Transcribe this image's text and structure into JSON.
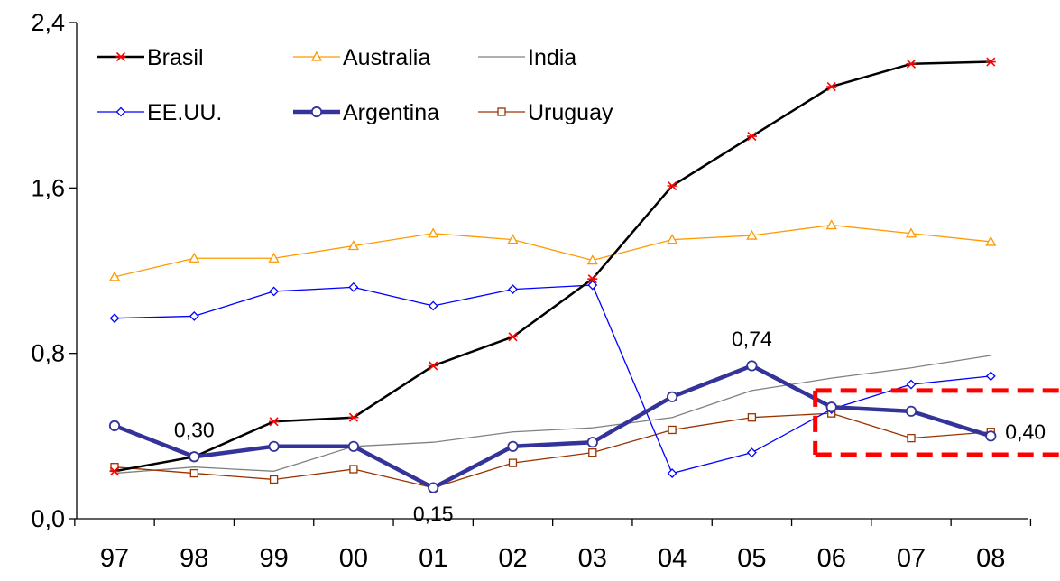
{
  "chart_data": {
    "type": "line",
    "title": "",
    "xlabel": "",
    "ylabel": "",
    "categories": [
      "97",
      "98",
      "99",
      "00",
      "01",
      "02",
      "03",
      "04",
      "05",
      "06",
      "07",
      "08"
    ],
    "ylim": [
      0,
      2.4
    ],
    "yticks": [
      0,
      0.8,
      1.6,
      2.4
    ],
    "ytick_labels": [
      "0,0",
      "0,8",
      "1,6",
      "2,4"
    ],
    "grid": false,
    "legend_position": "top-left",
    "series": [
      {
        "name": "Brasil",
        "color": "#000000",
        "marker": "asterisk",
        "marker_color": "#ff0000",
        "width": 2.5,
        "values": [
          0.23,
          0.3,
          0.47,
          0.49,
          0.74,
          0.88,
          1.16,
          1.61,
          1.85,
          2.09,
          2.2,
          2.21
        ]
      },
      {
        "name": "Australia",
        "color": "#ff9900",
        "marker": "triangle",
        "width": 1.3,
        "values": [
          1.17,
          1.26,
          1.26,
          1.32,
          1.38,
          1.35,
          1.25,
          1.35,
          1.37,
          1.42,
          1.38,
          1.34
        ]
      },
      {
        "name": "India",
        "color": "#808080",
        "marker": "none",
        "width": 1.3,
        "values": [
          0.22,
          0.25,
          0.23,
          0.35,
          0.37,
          0.42,
          0.44,
          0.49,
          0.62,
          0.68,
          0.73,
          0.79
        ]
      },
      {
        "name": "EE.UU.",
        "color": "#0000ff",
        "marker": "diamond",
        "width": 1.3,
        "values": [
          0.97,
          0.98,
          1.1,
          1.12,
          1.03,
          1.11,
          1.13,
          0.22,
          0.32,
          0.53,
          0.65,
          0.69
        ]
      },
      {
        "name": "Argentina",
        "color": "#333399",
        "marker": "circle",
        "width": 4.5,
        "values": [
          0.45,
          0.3,
          0.35,
          0.35,
          0.15,
          0.35,
          0.37,
          0.59,
          0.74,
          0.54,
          0.52,
          0.4
        ]
      },
      {
        "name": "Uruguay",
        "color": "#993300",
        "marker": "square",
        "width": 1.3,
        "values": [
          0.25,
          0.22,
          0.19,
          0.24,
          0.15,
          0.27,
          0.32,
          0.43,
          0.49,
          0.51,
          0.39,
          0.42
        ]
      }
    ],
    "annotations": [
      {
        "text": "0,30",
        "category": "98",
        "value": 0.3,
        "placement": "above"
      },
      {
        "text": "0,15",
        "category": "01",
        "value": 0.15,
        "placement": "below"
      },
      {
        "text": "0,74",
        "category": "05",
        "value": 0.74,
        "placement": "above"
      },
      {
        "text": "0,40",
        "category": "08",
        "value": 0.4,
        "placement": "right"
      }
    ],
    "highlight_box": {
      "from_category": "06",
      "value_range": [
        0.31,
        0.62
      ],
      "color": "#ff0000",
      "style": "dashed"
    }
  }
}
